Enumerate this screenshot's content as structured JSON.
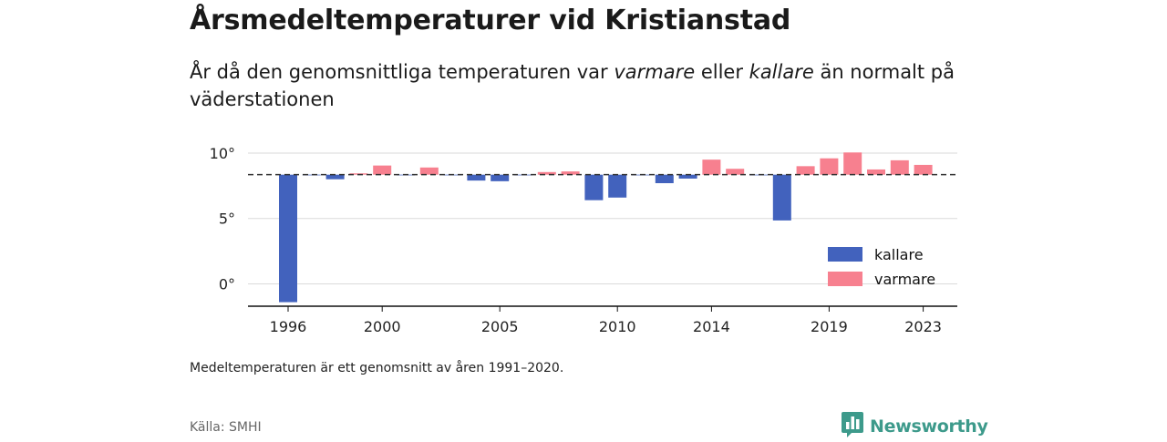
{
  "title": "Årsmedeltemperaturer vid Kristianstad",
  "subtitle": {
    "part1": "År då den genomsnittliga temperaturen var ",
    "warmer": "varmare",
    "part2": " eller ",
    "colder": "kallare",
    "part3": " än normalt på väderstationen"
  },
  "note": "Medeltemperaturen är ett genomsnitt av åren 1991–2020.",
  "source": "Källa: SMHI",
  "brand": {
    "name": "Newsworthy",
    "icon": "bar-chart-speech-bubble-icon",
    "color": "#3d9a8b"
  },
  "chart_data": {
    "type": "bar",
    "baseline": 8.35,
    "xlim": [
      1994,
      2024
    ],
    "ylim": [
      -1.7,
      10.5
    ],
    "y_ticks": [
      {
        "value": 10,
        "label": "10°"
      },
      {
        "value": 5,
        "label": "5°"
      },
      {
        "value": 0,
        "label": "0°"
      }
    ],
    "x_ticks": [
      {
        "value": 1996,
        "label": "1996"
      },
      {
        "value": 2000,
        "label": "2000"
      },
      {
        "value": 2005,
        "label": "2005"
      },
      {
        "value": 2010,
        "label": "2010"
      },
      {
        "value": 2014,
        "label": "2014"
      },
      {
        "value": 2019,
        "label": "2019"
      },
      {
        "value": 2023,
        "label": "2023"
      }
    ],
    "grid": true,
    "legend_position": "bottom-right",
    "colors": {
      "kallare": "#4262bd",
      "varmare": "#f7808f"
    },
    "series": [
      {
        "name": "kallare",
        "color": "#4262bd"
      },
      {
        "name": "varmare",
        "color": "#f7808f"
      }
    ],
    "years": [
      1996,
      1997,
      1998,
      1999,
      2000,
      2001,
      2002,
      2003,
      2004,
      2005,
      2006,
      2007,
      2008,
      2009,
      2010,
      2011,
      2012,
      2013,
      2014,
      2015,
      2016,
      2017,
      2018,
      2019,
      2020,
      2021,
      2022,
      2023
    ],
    "values": [
      -1.4,
      8.3,
      8.0,
      8.45,
      9.05,
      8.3,
      8.9,
      8.3,
      7.9,
      7.85,
      8.3,
      8.55,
      8.6,
      6.4,
      6.6,
      8.3,
      7.7,
      8.05,
      9.5,
      8.8,
      8.3,
      4.85,
      9.0,
      9.6,
      10.05,
      8.75,
      9.45,
      9.1
    ]
  }
}
